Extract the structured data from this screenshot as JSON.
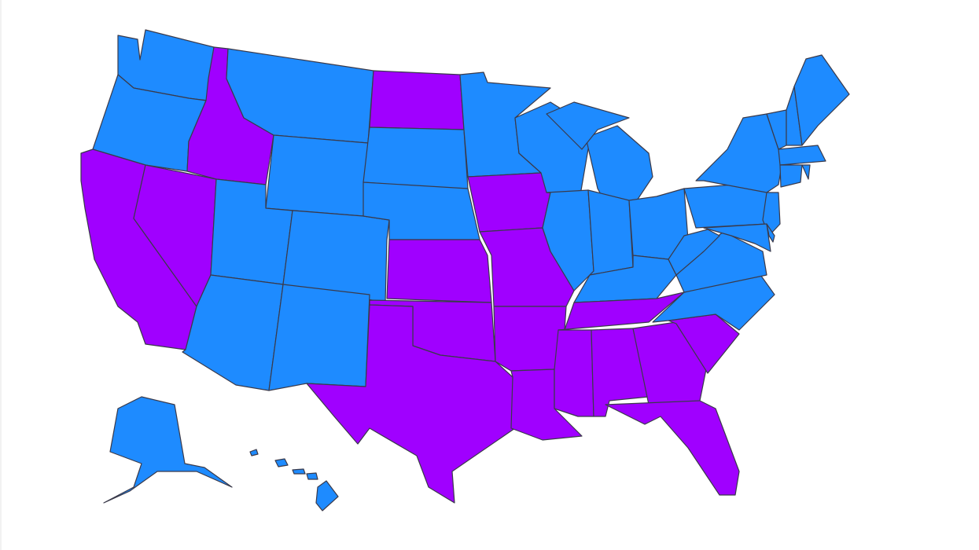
{
  "map": {
    "regions": [
      {
        "color": "#1e8bff"
      },
      {
        "color": "#1e8bff"
      },
      {
        "color": "#a000ff"
      },
      {
        "color": "#a000ff"
      },
      {
        "color": "#a000ff"
      },
      {
        "color": "#1e8bff"
      },
      {
        "color": "#1e8bff"
      },
      {
        "color": "#1e8bff"
      },
      {
        "color": "#1e8bff"
      },
      {
        "color": "#1e8bff"
      },
      {
        "color": "#1e8bff"
      },
      {
        "color": "#a000ff"
      },
      {
        "color": "#1e8bff"
      },
      {
        "color": "#1e8bff"
      },
      {
        "color": "#a000ff"
      },
      {
        "color": "#a000ff"
      },
      {
        "color": "#a000ff"
      },
      {
        "color": "#1e8bff"
      },
      {
        "color": "#a000ff"
      },
      {
        "color": "#a000ff"
      },
      {
        "color": "#a000ff"
      },
      {
        "color": "#a000ff"
      },
      {
        "color": "#1e8bff"
      },
      {
        "color": "#1e8bff"
      },
      {
        "color": "#1e8bff"
      },
      {
        "color": "#1e8bff"
      },
      {
        "color": "#1e8bff"
      },
      {
        "color": "#1e8bff"
      },
      {
        "color": "#a000ff"
      },
      {
        "color": "#a000ff"
      },
      {
        "color": "#a000ff"
      },
      {
        "color": "#a000ff"
      },
      {
        "color": "#a000ff"
      },
      {
        "color": "#a000ff"
      },
      {
        "color": "#1e8bff"
      },
      {
        "color": "#1e8bff"
      },
      {
        "color": "#1e8bff"
      },
      {
        "color": "#1e8bff"
      },
      {
        "color": "#1e8bff"
      },
      {
        "color": "#1e8bff"
      },
      {
        "color": "#1e8bff"
      },
      {
        "color": "#1e8bff"
      },
      {
        "color": "#1e8bff"
      },
      {
        "color": "#1e8bff"
      },
      {
        "color": "#1e8bff"
      },
      {
        "color": "#1e8bff"
      },
      {
        "color": "#1e8bff"
      },
      {
        "color": "#1e8bff"
      },
      {
        "color": "#1e8bff"
      },
      {
        "color": "#1e8bff"
      }
    ]
  }
}
